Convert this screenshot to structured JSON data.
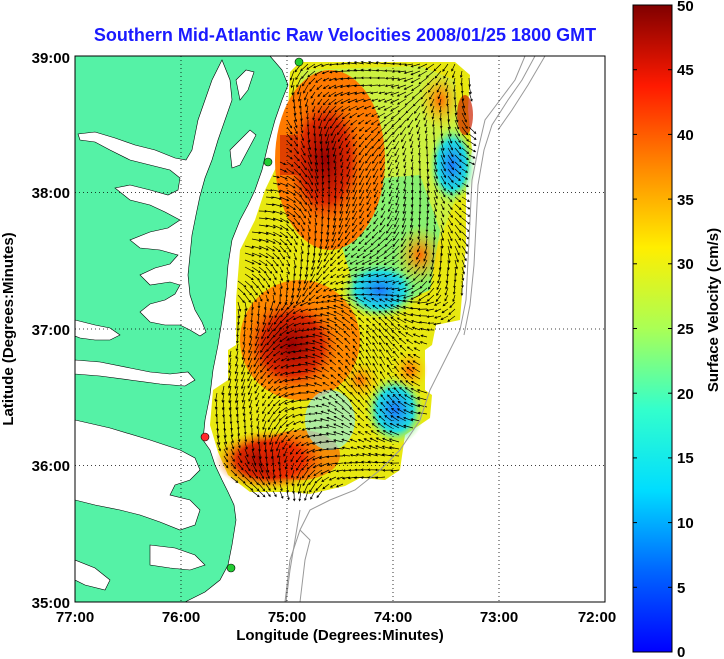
{
  "figure": {
    "title": "Southern Mid-Atlantic Raw Velocities 2008/01/25 1800 GMT",
    "xlabel": "Longitude (Degrees:Minutes)",
    "ylabel": "Latitude (Degrees:Minutes)",
    "x_ticks": [
      "77:00",
      "76:00",
      "75:00",
      "74:00",
      "73:00",
      "72:00"
    ],
    "y_ticks": [
      "39:00",
      "38:00",
      "37:00",
      "36:00",
      "35:00"
    ],
    "colorbar": {
      "label": "Surface Velocity (cm/s)",
      "ticks": [
        "50",
        "45",
        "40",
        "35",
        "30",
        "25",
        "20",
        "15",
        "10",
        "5",
        "0"
      ],
      "min": 0,
      "max": 50,
      "colormap": "jet"
    },
    "colors": {
      "title": "#1a1aff",
      "land": "#55f2a6",
      "water": "#ffffff",
      "bathymetry": "#999999",
      "station": "#22cc33",
      "station_highlight": "#ff2a2a"
    },
    "map_extent": {
      "lon_range": [
        "77:00W",
        "72:00W"
      ],
      "lat_range": [
        "35:00N",
        "39:00N"
      ]
    }
  }
}
